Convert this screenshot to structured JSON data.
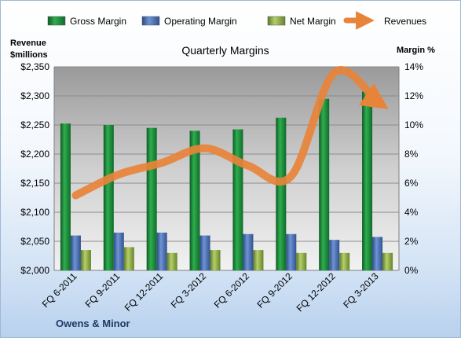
{
  "chart_data": {
    "type": "bar",
    "title": "Quarterly Margins",
    "company": "Owens & Minor",
    "ylabel_left": [
      "Revenue",
      "$millions"
    ],
    "ylabel_right": "Margin %",
    "categories": [
      "FQ 6-2011",
      "FQ 9-2011",
      "FQ 12-2011",
      "FQ 3-2012",
      "FQ 6-2012",
      "FQ 9-2012",
      "FQ 12-2012",
      "FQ 3-2013"
    ],
    "ylim_left": [
      2000,
      2350
    ],
    "yticks_left": [
      2000,
      2050,
      2100,
      2150,
      2200,
      2250,
      2300,
      2350
    ],
    "yticklabels_left": [
      "$2,000",
      "$2,050",
      "$2,100",
      "$2,150",
      "$2,200",
      "$2,250",
      "$2,300",
      "$2,350"
    ],
    "ylim_right": [
      0,
      14
    ],
    "yticks_right": [
      0,
      2,
      4,
      6,
      8,
      10,
      12,
      14
    ],
    "yticklabels_right": [
      "0%",
      "2%",
      "4%",
      "6%",
      "8%",
      "10%",
      "12%",
      "14%"
    ],
    "grid": true,
    "legend_position": "top",
    "series": [
      {
        "name": "Gross Margin",
        "type": "bar",
        "axis": "right",
        "color": "#1e8a3c",
        "values": [
          10.1,
          10.0,
          9.8,
          9.6,
          9.7,
          10.5,
          11.8,
          12.3
        ]
      },
      {
        "name": "Operating Margin",
        "type": "bar",
        "axis": "right",
        "color": "#4a6fb5",
        "values": [
          2.4,
          2.6,
          2.6,
          2.4,
          2.5,
          2.5,
          2.1,
          2.3
        ]
      },
      {
        "name": "Net Margin",
        "type": "bar",
        "axis": "right",
        "color": "#93b04a",
        "values": [
          1.4,
          1.6,
          1.2,
          1.4,
          1.4,
          1.2,
          1.2,
          1.2
        ]
      },
      {
        "name": "Revenues",
        "type": "line",
        "axis": "left",
        "color": "#e8833a",
        "values": [
          2129,
          2165,
          2185,
          2210,
          2180,
          2162,
          2340,
          2290
        ]
      }
    ]
  }
}
